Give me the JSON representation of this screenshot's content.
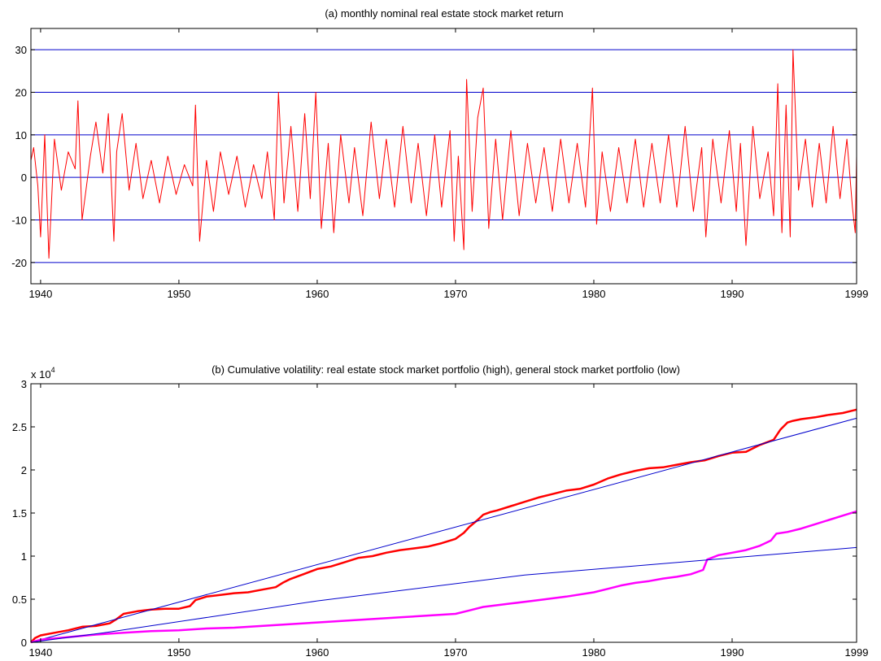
{
  "chart_data": [
    {
      "type": "line",
      "title": "(a) monthly nominal real estate stock market return",
      "xlim": [
        1939.3,
        1999.0
      ],
      "ylim": [
        -25,
        35
      ],
      "xticks": [
        1940,
        1950,
        1960,
        1970,
        1980,
        1990,
        1999
      ],
      "yticks": [
        -20,
        -10,
        0,
        10,
        20,
        30
      ],
      "grid": "horizontal lines at y ticks",
      "colors": {
        "series": "#ff0000",
        "grid": "#0000cc"
      },
      "series": [
        {
          "values_note": "monthly returns, 1939–1999",
          "x": [
            1939.3,
            1939.5,
            1939.8,
            1940.0,
            1940.3,
            1940.6,
            1941.0,
            1941.5,
            1942.0,
            1942.5,
            1942.7,
            1943.0,
            1943.6,
            1944.0,
            1944.5,
            1944.9,
            1945.3,
            1945.5,
            1945.9,
            1946.4,
            1946.9,
            1947.4,
            1948.0,
            1948.6,
            1949.2,
            1949.8,
            1950.4,
            1951.0,
            1951.2,
            1951.5,
            1952.0,
            1952.5,
            1953.0,
            1953.6,
            1954.2,
            1954.8,
            1955.4,
            1956.0,
            1956.4,
            1956.9,
            1957.2,
            1957.6,
            1958.1,
            1958.6,
            1959.1,
            1959.5,
            1959.9,
            1960.3,
            1960.8,
            1961.2,
            1961.7,
            1962.3,
            1962.7,
            1963.3,
            1963.9,
            1964.5,
            1965.0,
            1965.6,
            1966.2,
            1966.8,
            1967.3,
            1967.9,
            1968.5,
            1969.0,
            1969.6,
            1969.9,
            1970.2,
            1970.6,
            1970.8,
            1971.2,
            1971.6,
            1972.0,
            1972.4,
            1972.9,
            1973.4,
            1974.0,
            1974.6,
            1975.2,
            1975.8,
            1976.4,
            1977.0,
            1977.6,
            1978.2,
            1978.8,
            1979.4,
            1979.9,
            1980.2,
            1980.6,
            1981.2,
            1981.8,
            1982.4,
            1983.0,
            1983.6,
            1984.2,
            1984.8,
            1985.4,
            1986.0,
            1986.6,
            1987.2,
            1987.8,
            1988.1,
            1988.6,
            1989.2,
            1989.8,
            1990.3,
            1990.6,
            1991.0,
            1991.5,
            1992.0,
            1992.6,
            1993.0,
            1993.3,
            1993.6,
            1993.9,
            1994.2,
            1994.4,
            1994.8,
            1995.3,
            1995.8,
            1996.3,
            1996.8,
            1997.3,
            1997.8,
            1998.3,
            1998.7,
            1998.9,
            1999.0
          ],
          "values": [
            4,
            7,
            -2,
            -14,
            10,
            -19,
            9,
            -3,
            6,
            2,
            18,
            -10,
            5,
            13,
            1,
            15,
            -15,
            6,
            15,
            -3,
            8,
            -5,
            4,
            -6,
            5,
            -4,
            3,
            -2,
            17,
            -15,
            4,
            -8,
            6,
            -4,
            5,
            -7,
            3,
            -5,
            6,
            -10,
            20,
            -6,
            12,
            -8,
            15,
            -5,
            20,
            -12,
            8,
            -13,
            10,
            -6,
            7,
            -9,
            13,
            -5,
            9,
            -7,
            12,
            -6,
            8,
            -9,
            10,
            -7,
            11,
            -15,
            5,
            -17,
            23,
            -8,
            14,
            21,
            -12,
            9,
            -10,
            11,
            -9,
            8,
            -6,
            7,
            -8,
            9,
            -6,
            8,
            -7,
            21,
            -11,
            6,
            -8,
            7,
            -6,
            9,
            -7,
            8,
            -6,
            10,
            -7,
            12,
            -8,
            7,
            -14,
            9,
            -6,
            11,
            -8,
            8,
            -16,
            12,
            -5,
            6,
            -9,
            22,
            -13,
            17,
            -14,
            30,
            -3,
            9,
            -7,
            8,
            -6,
            12,
            -5,
            9,
            -7,
            -13,
            5
          ]
        }
      ]
    },
    {
      "type": "line",
      "title": "(b) Cumulative volatility: real estate stock market portfolio (high), general stock market portfolio (low)",
      "scale_label": "x 10",
      "scale_exponent": "4",
      "xlim": [
        1939.3,
        1999.0
      ],
      "ylim": [
        0,
        3
      ],
      "xticks": [
        1940,
        1950,
        1960,
        1970,
        1980,
        1990,
        1999
      ],
      "yticks": [
        0,
        0.5,
        1,
        1.5,
        2,
        2.5,
        3
      ],
      "ytick_labels": [
        "0",
        "0.5",
        "1",
        "1.5",
        "2",
        "2.5",
        "3"
      ],
      "grid": "off",
      "colors": {
        "high": "#ff0000",
        "low": "#ff00ff",
        "trend": "#0000cc"
      },
      "series": [
        {
          "role": "real estate (high)",
          "x": [
            1939.3,
            1939.6,
            1940.0,
            1941.0,
            1942.0,
            1943.0,
            1944.0,
            1945.0,
            1945.5,
            1946.0,
            1947.0,
            1948.0,
            1949.0,
            1950.0,
            1950.8,
            1951.2,
            1952.0,
            1953.0,
            1954.0,
            1955.0,
            1956.0,
            1957.0,
            1957.5,
            1958.0,
            1959.0,
            1960.0,
            1961.0,
            1962.0,
            1963.0,
            1964.0,
            1965.0,
            1966.0,
            1967.0,
            1968.0,
            1969.0,
            1970.0,
            1970.6,
            1971.0,
            1971.6,
            1972.0,
            1972.5,
            1973.0,
            1974.0,
            1975.0,
            1976.0,
            1977.0,
            1978.0,
            1979.0,
            1980.0,
            1981.0,
            1982.0,
            1983.0,
            1984.0,
            1985.0,
            1986.0,
            1987.0,
            1988.0,
            1989.0,
            1990.0,
            1991.0,
            1992.0,
            1993.0,
            1993.5,
            1994.0,
            1994.4,
            1995.0,
            1996.0,
            1997.0,
            1998.0,
            1999.0
          ],
          "values": [
            0.0,
            0.05,
            0.08,
            0.11,
            0.14,
            0.18,
            0.19,
            0.22,
            0.27,
            0.33,
            0.36,
            0.38,
            0.39,
            0.39,
            0.42,
            0.49,
            0.53,
            0.55,
            0.57,
            0.58,
            0.61,
            0.64,
            0.69,
            0.73,
            0.79,
            0.85,
            0.88,
            0.93,
            0.98,
            1.0,
            1.04,
            1.07,
            1.09,
            1.11,
            1.15,
            1.2,
            1.27,
            1.34,
            1.42,
            1.48,
            1.51,
            1.53,
            1.58,
            1.63,
            1.68,
            1.72,
            1.76,
            1.78,
            1.83,
            1.9,
            1.95,
            1.99,
            2.02,
            2.03,
            2.06,
            2.09,
            2.11,
            2.16,
            2.2,
            2.21,
            2.29,
            2.35,
            2.47,
            2.55,
            2.57,
            2.59,
            2.61,
            2.64,
            2.66,
            2.7
          ]
        },
        {
          "role": "real estate linear trend",
          "x": [
            1939.3,
            1999.0
          ],
          "values": [
            0.0,
            2.6
          ]
        },
        {
          "role": "general market (low)",
          "x": [
            1939.3,
            1940.0,
            1942.0,
            1944.0,
            1946.0,
            1948.0,
            1950.0,
            1952.0,
            1954.0,
            1956.0,
            1958.0,
            1960.0,
            1962.0,
            1964.0,
            1966.0,
            1968.0,
            1970.0,
            1971.0,
            1972.0,
            1974.0,
            1976.0,
            1978.0,
            1980.0,
            1981.0,
            1982.0,
            1983.0,
            1984.0,
            1985.0,
            1986.0,
            1987.0,
            1987.9,
            1988.2,
            1989.0,
            1990.0,
            1991.0,
            1992.0,
            1992.8,
            1993.2,
            1994.0,
            1995.0,
            1996.0,
            1997.0,
            1998.0,
            1999.0
          ],
          "values": [
            0.0,
            0.03,
            0.06,
            0.09,
            0.11,
            0.13,
            0.14,
            0.16,
            0.17,
            0.19,
            0.21,
            0.23,
            0.25,
            0.27,
            0.29,
            0.31,
            0.33,
            0.37,
            0.41,
            0.45,
            0.49,
            0.53,
            0.58,
            0.62,
            0.66,
            0.69,
            0.71,
            0.74,
            0.76,
            0.79,
            0.84,
            0.96,
            1.01,
            1.04,
            1.07,
            1.12,
            1.18,
            1.26,
            1.28,
            1.32,
            1.37,
            1.42,
            1.47,
            1.52
          ]
        },
        {
          "role": "general market linear trend",
          "x": [
            1939.3,
            1945.0,
            1960.0,
            1975.0,
            1999.0
          ],
          "values": [
            0.0,
            0.12,
            0.48,
            0.78,
            1.1
          ]
        }
      ]
    }
  ]
}
